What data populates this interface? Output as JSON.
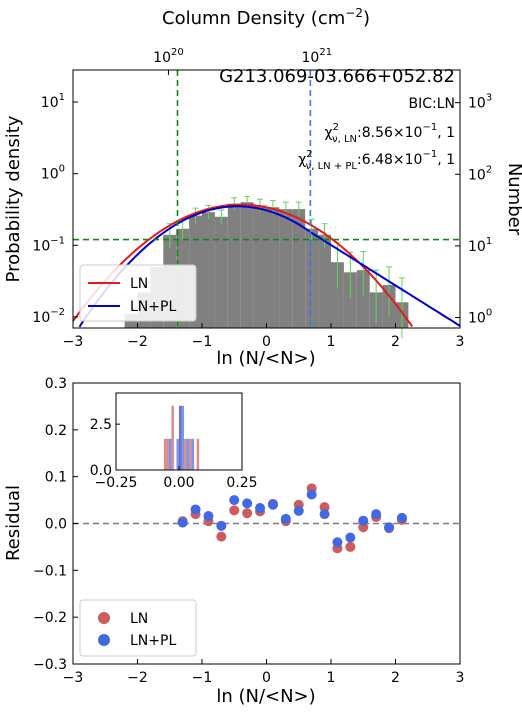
{
  "chart_data": [
    {
      "type": "bar",
      "title": "G213.069-03.666+052.82",
      "xlabel": "ln (N/<N>)",
      "ylabel": "Probability density",
      "y2label": "Number",
      "top_xlabel_text": "Column Density (cm",
      "top_xlabel_sup": "−2",
      "top_xlabel_close": ")",
      "xlim": [
        -3,
        3
      ],
      "ylim": [
        0.007,
        28
      ],
      "yscale": "log",
      "x_ticks": [
        "−3",
        "−2",
        "−1",
        "0",
        "1",
        "2",
        "3"
      ],
      "y_ticks": [
        {
          "base": "10",
          "exp": "−2",
          "v": 0.01
        },
        {
          "base": "10",
          "exp": "−1",
          "v": 0.1
        },
        {
          "base": "10",
          "exp": "0",
          "v": 1
        },
        {
          "base": "10",
          "exp": "1",
          "v": 10
        }
      ],
      "top_ticks": [
        {
          "base": "10",
          "exp": "20",
          "x": -1.52
        },
        {
          "base": "10",
          "exp": "21",
          "x": 0.78
        }
      ],
      "right_ticks": [
        {
          "base": "10",
          "exp": "0",
          "v": 0.0098
        },
        {
          "base": "10",
          "exp": "1",
          "v": 0.098
        },
        {
          "base": "10",
          "exp": "2",
          "v": 0.98
        },
        {
          "base": "10",
          "exp": "3",
          "v": 9.8
        }
      ],
      "annotations": {
        "bic": "BIC:LN",
        "chi_ln_label": "χ",
        "chi_ln_sup": "2",
        "chi_ln_sub": "ν, LN",
        "chi_ln_value": ":8.56×10",
        "chi_ln_exp": "−1",
        "chi_ln_tail": ", 1",
        "chi_lnpl_label": "χ",
        "chi_lnpl_sup": "2",
        "chi_lnpl_sub": "ν, LN + PL",
        "chi_lnpl_value": ":6.48×10",
        "chi_lnpl_exp": "−1",
        "chi_lnpl_tail": ", 1"
      },
      "histogram": {
        "bin_width": 0.2,
        "bins": [
          {
            "x": -2.1,
            "y": 0.011
          },
          {
            "x": -1.9,
            "y": 0.022
          },
          {
            "x": -1.7,
            "y": 0.05
          },
          {
            "x": -1.5,
            "y": 0.14
          },
          {
            "x": -1.3,
            "y": 0.17
          },
          {
            "x": -1.1,
            "y": 0.26
          },
          {
            "x": -0.9,
            "y": 0.29
          },
          {
            "x": -0.7,
            "y": 0.25
          },
          {
            "x": -0.5,
            "y": 0.38
          },
          {
            "x": -0.3,
            "y": 0.4
          },
          {
            "x": -0.1,
            "y": 0.36
          },
          {
            "x": 0.1,
            "y": 0.34
          },
          {
            "x": 0.3,
            "y": 0.32
          },
          {
            "x": 0.5,
            "y": 0.32
          },
          {
            "x": 0.7,
            "y": 0.17
          },
          {
            "x": 0.9,
            "y": 0.14
          },
          {
            "x": 1.1,
            "y": 0.058
          },
          {
            "x": 1.3,
            "y": 0.042
          },
          {
            "x": 1.5,
            "y": 0.045
          },
          {
            "x": 1.7,
            "y": 0.022
          },
          {
            "x": 1.9,
            "y": 0.028
          },
          {
            "x": 2.1,
            "y": 0.016
          }
        ],
        "errors": [
          {
            "x": -1.5,
            "lo": 0.09,
            "hi": 0.2
          },
          {
            "x": -1.3,
            "lo": 0.12,
            "hi": 0.23
          },
          {
            "x": -1.1,
            "lo": 0.2,
            "hi": 0.33
          },
          {
            "x": -0.9,
            "lo": 0.23,
            "hi": 0.36
          },
          {
            "x": -0.7,
            "lo": 0.2,
            "hi": 0.31
          },
          {
            "x": -0.5,
            "lo": 0.31,
            "hi": 0.46
          },
          {
            "x": -0.3,
            "lo": 0.33,
            "hi": 0.48
          },
          {
            "x": -0.1,
            "lo": 0.29,
            "hi": 0.44
          },
          {
            "x": 0.1,
            "lo": 0.27,
            "hi": 0.42
          },
          {
            "x": 0.3,
            "lo": 0.26,
            "hi": 0.4
          },
          {
            "x": 0.5,
            "lo": 0.26,
            "hi": 0.4
          },
          {
            "x": 0.7,
            "lo": 0.12,
            "hi": 0.23
          },
          {
            "x": 0.9,
            "lo": 0.09,
            "hi": 0.2
          },
          {
            "x": 1.1,
            "lo": 0.025,
            "hi": 0.11
          },
          {
            "x": 1.3,
            "lo": 0.018,
            "hi": 0.08
          },
          {
            "x": 1.5,
            "lo": 0.02,
            "hi": 0.082
          },
          {
            "x": 1.7,
            "lo": 0.008,
            "hi": 0.045
          },
          {
            "x": 1.9,
            "lo": 0.01,
            "hi": 0.05
          },
          {
            "x": 2.1,
            "lo": 0.005,
            "hi": 0.035
          }
        ]
      },
      "fits": {
        "ln": {
          "name": "LN",
          "color": "#e41a1c",
          "mu": -0.4,
          "sigma": 0.95,
          "amp": 0.37
        },
        "lnpl": {
          "name": "LN+PL",
          "color": "#0000cc",
          "mu": -0.45,
          "sigma": 0.88,
          "amp": 0.35,
          "x_break": 0.7,
          "slope": -1.3
        }
      },
      "reference_lines": {
        "vertical_green_x": -1.38,
        "vertical_blue_x": 0.68,
        "horizontal_green_y": 0.12
      },
      "legend": {
        "position": "lower-left",
        "entries": [
          "LN",
          "LN+PL"
        ]
      }
    },
    {
      "type": "scatter",
      "xlabel": "ln (N/<N>)",
      "ylabel": "Residual",
      "xlim": [
        -3,
        3
      ],
      "ylim": [
        -0.3,
        0.3
      ],
      "x_ticks": [
        "−3",
        "−2",
        "−1",
        "0",
        "1",
        "2",
        "3"
      ],
      "y_ticks": [
        "−0.3",
        "−0.2",
        "−0.1",
        "0.0",
        "0.1",
        "0.2",
        "0.3"
      ],
      "y_tick_values": [
        -0.3,
        -0.2,
        -0.1,
        0.0,
        0.1,
        0.2,
        0.3
      ],
      "zero_line": true,
      "series": [
        {
          "name": "LN",
          "color": "#cd5c5c",
          "x": [
            -1.3,
            -1.1,
            -0.9,
            -0.7,
            -0.5,
            -0.3,
            -0.1,
            0.1,
            0.3,
            0.5,
            0.7,
            0.9,
            1.1,
            1.3,
            1.5,
            1.7,
            1.9,
            2.1
          ],
          "y": [
            0.005,
            0.02,
            0.005,
            -0.028,
            0.028,
            0.022,
            0.026,
            0.042,
            0.005,
            0.04,
            0.075,
            0.035,
            -0.053,
            -0.05,
            -0.008,
            0.014,
            -0.01,
            0.008
          ]
        },
        {
          "name": "LN+PL",
          "color": "#4169e1",
          "x": [
            -1.3,
            -1.1,
            -0.9,
            -0.7,
            -0.5,
            -0.3,
            -0.1,
            0.1,
            0.3,
            0.5,
            0.7,
            0.9,
            1.1,
            1.3,
            1.5,
            1.7,
            1.9,
            2.1
          ],
          "y": [
            0.002,
            0.03,
            0.016,
            -0.005,
            0.05,
            0.043,
            0.033,
            0.04,
            0.01,
            0.027,
            0.062,
            0.02,
            -0.04,
            -0.03,
            0.006,
            0.02,
            -0.008,
            0.012
          ]
        }
      ],
      "legend": {
        "position": "lower-left",
        "entries": [
          "LN",
          "LN+PL"
        ]
      },
      "inset": {
        "type": "bar",
        "xlim": [
          -0.25,
          0.25
        ],
        "ylim": [
          0,
          4.2
        ],
        "x_ticks": [
          "−0.25",
          "0.00",
          "0.25"
        ],
        "x_tick_values": [
          -0.25,
          0.0,
          0.25
        ],
        "y_ticks": [
          "0.0",
          "2.5"
        ],
        "y_tick_values": [
          0.0,
          2.5
        ],
        "series": [
          {
            "name": "LN",
            "color": "#cd5c5c",
            "bin_width": 0.01,
            "bins": [
              {
                "x": -0.055,
                "y": 1.7
              },
              {
                "x": -0.045,
                "y": 1.7
              },
              {
                "x": -0.025,
                "y": 3.5
              },
              {
                "x": 0.005,
                "y": 3.5
              },
              {
                "x": 0.025,
                "y": 1.7
              },
              {
                "x": 0.045,
                "y": 1.7
              },
              {
                "x": 0.075,
                "y": 1.7
              }
            ]
          },
          {
            "name": "LN+PL",
            "color": "#4169e1",
            "bin_width": 0.01,
            "bins": [
              {
                "x": -0.035,
                "y": 1.7
              },
              {
                "x": -0.005,
                "y": 1.7
              },
              {
                "x": 0.005,
                "y": 3.5
              },
              {
                "x": 0.015,
                "y": 3.5
              },
              {
                "x": 0.035,
                "y": 1.7
              },
              {
                "x": 0.055,
                "y": 1.7
              }
            ]
          }
        ]
      }
    }
  ]
}
